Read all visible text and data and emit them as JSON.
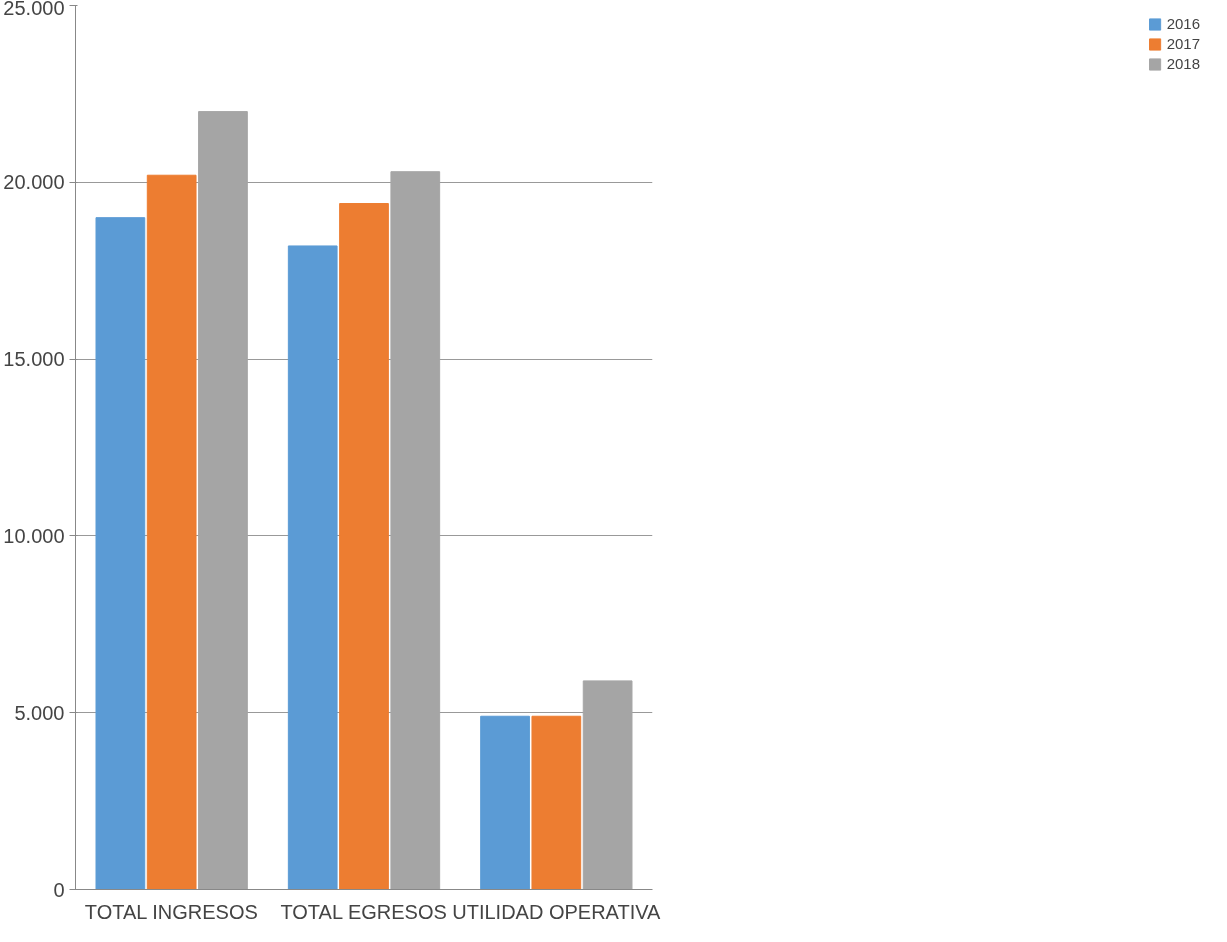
{
  "chart_data": {
    "type": "bar",
    "categories": [
      "TOTAL INGRESOS",
      "TOTAL EGRESOS",
      "UTILIDAD OPERATIVA"
    ],
    "series": [
      {
        "name": "2016",
        "color": "#5b9bd5",
        "values": [
          19000,
          18200,
          4900
        ]
      },
      {
        "name": "2017",
        "color": "#ed7d31",
        "values": [
          20200,
          19400,
          4900
        ]
      },
      {
        "name": "2018",
        "color": "#a5a5a5",
        "values": [
          22000,
          20300,
          5900
        ]
      }
    ],
    "ylim": [
      0,
      25000
    ],
    "yticks": [
      {
        "value": 0,
        "label": "0"
      },
      {
        "value": 5000,
        "label": "5.000"
      },
      {
        "value": 10000,
        "label": "10.000"
      },
      {
        "value": 15000,
        "label": "15.000"
      },
      {
        "value": 20000,
        "label": "20.000"
      },
      {
        "value": 25000,
        "label": "25.000"
      }
    ],
    "grid": "y",
    "legend": "right"
  }
}
